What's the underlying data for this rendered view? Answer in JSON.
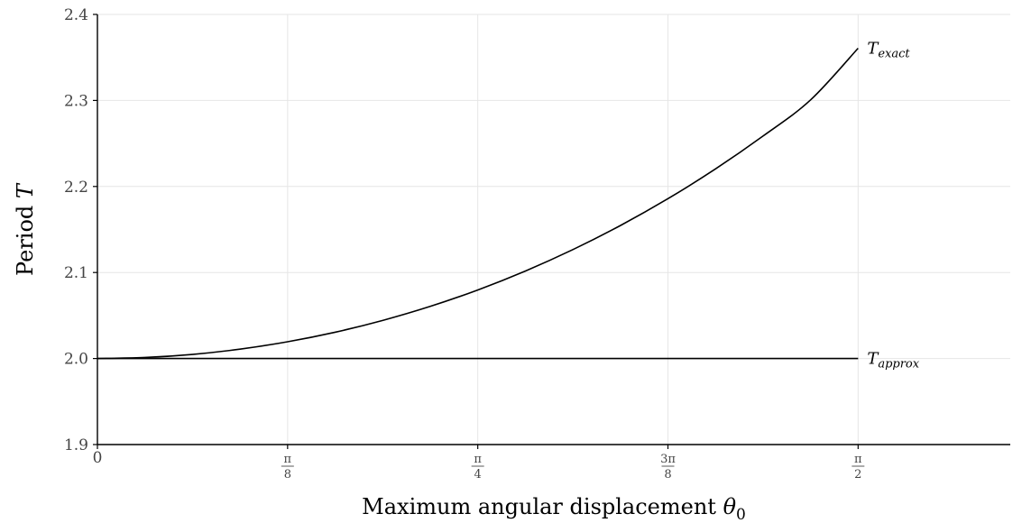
{
  "chart_data": {
    "type": "line",
    "xlabel": {
      "text": "Maximum angular displacement ",
      "symbol": "θ",
      "subscript": "0"
    },
    "ylabel": {
      "text": "Period ",
      "symbol": "T"
    },
    "xlim": [
      0,
      1.885
    ],
    "ylim": [
      1.9,
      2.4
    ],
    "grid": true,
    "legend": "none",
    "y_ticks": [
      {
        "value": 1.9,
        "label": "1.9"
      },
      {
        "value": 2.0,
        "label": "2.0"
      },
      {
        "value": 2.1,
        "label": "2.1"
      },
      {
        "value": 2.2,
        "label": "2.2"
      },
      {
        "value": 2.3,
        "label": "2.3"
      },
      {
        "value": 2.4,
        "label": "2.4"
      }
    ],
    "x_ticks": [
      {
        "value": 0,
        "label": "0"
      },
      {
        "value": 0.3927,
        "num": "π",
        "den": "8"
      },
      {
        "value": 0.7854,
        "num": "π",
        "den": "4"
      },
      {
        "value": 1.1781,
        "num": "3π",
        "den": "8"
      },
      {
        "value": 1.5708,
        "num": "π",
        "den": "2"
      }
    ],
    "series": [
      {
        "name": "T",
        "subscript": "exact",
        "color": "#000000",
        "x": [
          0,
          0.0982,
          0.1963,
          0.2945,
          0.3927,
          0.4909,
          0.589,
          0.6872,
          0.7854,
          0.8836,
          0.9817,
          1.0799,
          1.1781,
          1.2763,
          1.3744,
          1.4726,
          1.5708
        ],
        "y": [
          2.0,
          2.0012,
          2.0048,
          2.0109,
          2.0195,
          2.0306,
          2.0443,
          2.0606,
          2.0797,
          2.1017,
          2.1266,
          2.1546,
          2.1858,
          2.2204,
          2.2586,
          2.3006,
          2.3607
        ]
      },
      {
        "name": "T",
        "subscript": "approx",
        "color": "#000000",
        "x": [
          0,
          1.5708
        ],
        "y": [
          2.0,
          2.0
        ]
      }
    ]
  }
}
